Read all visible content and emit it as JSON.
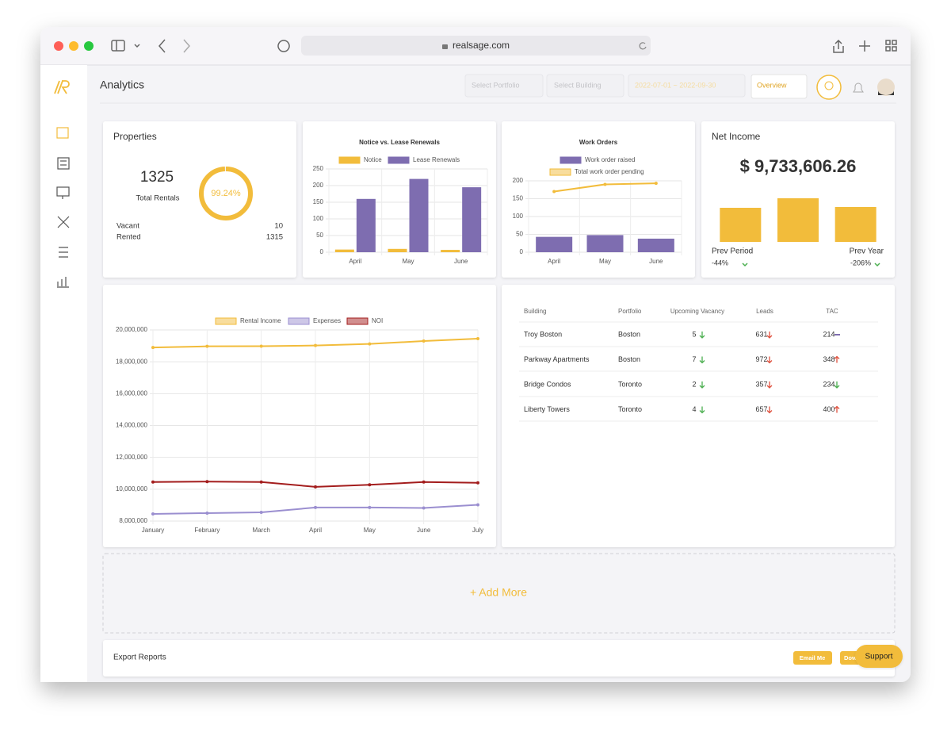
{
  "browser": {
    "url": "realsage.com"
  },
  "header": {
    "title": "Analytics",
    "portfolio": "Select Portfolio",
    "building": "Select Building",
    "dates": "2022-07-01 ~ 2022-09-30",
    "view": "Overview"
  },
  "properties": {
    "title": "Properties",
    "total": 1325,
    "total_label": "Total Rentals",
    "occupancy": {
      "value": 99.24,
      "label": "99.24%"
    },
    "color": "#f2bc3b",
    "rows": [
      {
        "label": "Vacant",
        "value": 10
      },
      {
        "label": "Rented",
        "value": 1315
      }
    ]
  },
  "net_income": {
    "amount": "$ 9,733,606.26",
    "prev_period_label": "Prev Period",
    "prev_period": "-44%",
    "prev_year_label": "Prev Year",
    "prev_year": "-206%"
  },
  "chart_data": [
    {
      "type": "bar",
      "title": "Notice vs. Lease Renewals",
      "categories": [
        "April",
        "May",
        "June"
      ],
      "series": [
        {
          "name": "Notice",
          "color": "#f2bc3b",
          "values": [
            8,
            10,
            7
          ]
        },
        {
          "name": "Lease Renewals",
          "color": "#7e6db0",
          "values": [
            160,
            220,
            195
          ]
        }
      ],
      "ylim": [
        0,
        250
      ],
      "yticks": [
        0,
        50,
        100,
        150,
        200,
        250
      ],
      "grid": true
    },
    {
      "type": "bar",
      "title": "Work Orders",
      "categories": [
        "April",
        "May",
        "June"
      ],
      "series": [
        {
          "name": "Work order raised",
          "color": "#7e6db0",
          "values": [
            43,
            48,
            38
          ],
          "type": "bar"
        },
        {
          "name": "Total work order pending",
          "color": "#f2bc3b",
          "values": [
            170,
            190,
            193
          ],
          "type": "line"
        }
      ],
      "ylim": [
        0,
        200
      ],
      "yticks": [
        0,
        50,
        100,
        150,
        200
      ],
      "grid": true
    },
    {
      "type": "bar",
      "title": "Net Income",
      "values": [
        43,
        55,
        44
      ],
      "color": "#f2bc3b",
      "ylim": [
        0,
        58
      ]
    },
    {
      "type": "line",
      "categories": [
        "January",
        "February",
        "March",
        "April",
        "May",
        "June",
        "July"
      ],
      "series": [
        {
          "name": "Rental Income",
          "color": "#f2bc3b",
          "values": [
            18900000,
            18970000,
            18980000,
            19020000,
            19120000,
            19300000,
            19450000
          ]
        },
        {
          "name": "Expenses",
          "color": "#9b8fd0",
          "values": [
            8450000,
            8500000,
            8550000,
            8850000,
            8850000,
            8820000,
            9020000
          ]
        },
        {
          "name": "NOI",
          "color": "#a31d1d",
          "values": [
            10450000,
            10480000,
            10450000,
            10150000,
            10280000,
            10450000,
            10400000
          ]
        }
      ],
      "ylim": [
        8000000,
        20000000
      ],
      "yticks": [
        {
          "value": 8000000,
          "label": "8,000,000"
        },
        {
          "value": 10000000,
          "label": "10,000,000"
        },
        {
          "value": 12000000,
          "label": "12,000,000"
        },
        {
          "value": 14000000,
          "label": "14,000,000"
        },
        {
          "value": 16000000,
          "label": "16,000,000"
        },
        {
          "value": 18000000,
          "label": "18,000,000"
        },
        {
          "value": 20000000,
          "label": "20,000,000"
        }
      ],
      "grid": true
    }
  ],
  "table": {
    "columns": [
      "Building",
      "Portfolio",
      "Upcoming Vacancy",
      "Leads",
      "TAC"
    ],
    "rows": [
      {
        "cells": [
          "Troy Boston",
          "Boston",
          5,
          631,
          214
        ],
        "trends": [
          "down",
          "down",
          "flat"
        ],
        "trend_colors": [
          "#4caf50",
          "#e0523f",
          "#7e6db0"
        ]
      },
      {
        "cells": [
          "Parkway Apartments",
          "Boston",
          7,
          972,
          348
        ],
        "trends": [
          "down",
          "down",
          "up"
        ],
        "trend_colors": [
          "#4caf50",
          "#e0523f",
          "#e0523f"
        ]
      },
      {
        "cells": [
          "Bridge Condos",
          "Toronto",
          2,
          357,
          234
        ],
        "trends": [
          "down",
          "down",
          "down"
        ],
        "trend_colors": [
          "#4caf50",
          "#e0523f",
          "#4caf50"
        ]
      },
      {
        "cells": [
          "Liberty Towers",
          "Toronto",
          4,
          657,
          400
        ],
        "trends": [
          "down",
          "down",
          "up"
        ],
        "trend_colors": [
          "#4caf50",
          "#e0523f",
          "#e0523f"
        ]
      }
    ]
  },
  "add_more": "+ Add More",
  "export": {
    "title": "Export Reports",
    "buttons": [
      "Email Me",
      "Download"
    ]
  },
  "support": "Support"
}
